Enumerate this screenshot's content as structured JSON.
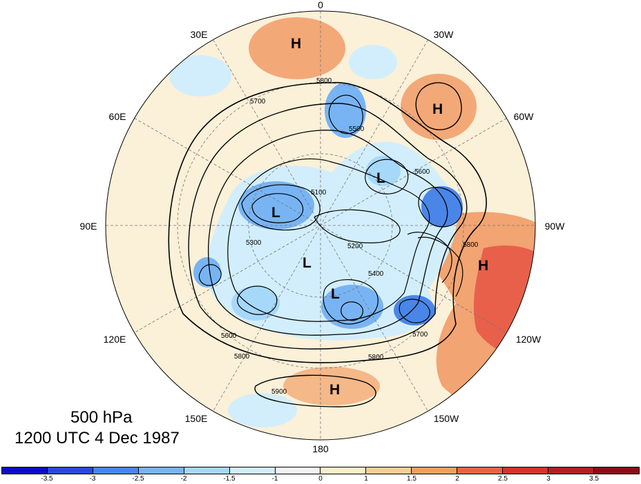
{
  "title": {
    "level": "500 hPa",
    "time": "1200 UTC 4 Dec 1987"
  },
  "longitude_labels": [
    {
      "id": "lon-0",
      "text": "0",
      "angle_deg": 0
    },
    {
      "id": "lon-30w",
      "text": "30W",
      "angle_deg": 30
    },
    {
      "id": "lon-60w",
      "text": "60W",
      "angle_deg": 60
    },
    {
      "id": "lon-90w",
      "text": "90W",
      "angle_deg": 90
    },
    {
      "id": "lon-120w",
      "text": "120W",
      "angle_deg": 120
    },
    {
      "id": "lon-150w",
      "text": "150W",
      "angle_deg": 150
    },
    {
      "id": "lon-180",
      "text": "180",
      "angle_deg": 180
    },
    {
      "id": "lon-150e",
      "text": "150E",
      "angle_deg": 210
    },
    {
      "id": "lon-120e",
      "text": "120E",
      "angle_deg": 240
    },
    {
      "id": "lon-90e",
      "text": "90E",
      "angle_deg": 270
    },
    {
      "id": "lon-60e",
      "text": "60E",
      "angle_deg": 300
    },
    {
      "id": "lon-30e",
      "text": "30E",
      "angle_deg": 330
    }
  ],
  "pressure_centers": [
    {
      "type": "H",
      "text": "H"
    },
    {
      "type": "H",
      "text": "H"
    },
    {
      "type": "H",
      "text": "H"
    },
    {
      "type": "H",
      "text": "H"
    },
    {
      "type": "L",
      "text": "L"
    },
    {
      "type": "L",
      "text": "L"
    },
    {
      "type": "L",
      "text": "L"
    },
    {
      "type": "L",
      "text": "L"
    }
  ],
  "contour_labels": [
    "5800",
    "5700",
    "5600",
    "5500",
    "5100",
    "5300",
    "5400",
    "5200",
    "5900"
  ],
  "colorbar": {
    "colors": [
      "#0c0cc8",
      "#2a48dc",
      "#4a86e8",
      "#78b4f4",
      "#a6d8fa",
      "#d2eefc",
      "#f4f4f4",
      "#fbeec8",
      "#f6cf94",
      "#f0a062",
      "#e86448",
      "#d8322c",
      "#b41e24",
      "#8c0c18"
    ],
    "labels": [
      "-3.5",
      "-3",
      "-2.5",
      "-2",
      "-1.5",
      "-1",
      "0",
      "1",
      "1.5",
      "2",
      "2.5",
      "3",
      "3.5"
    ]
  }
}
